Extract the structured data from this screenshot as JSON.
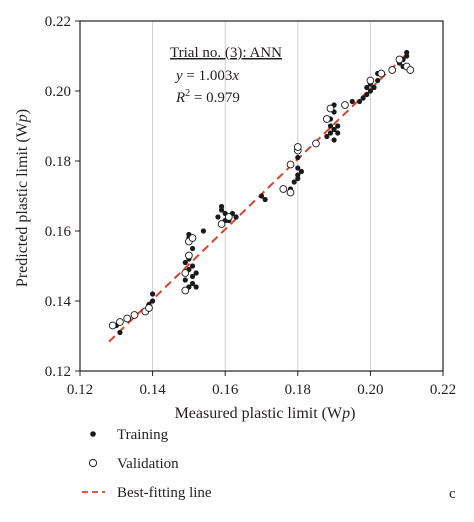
{
  "chart_data": {
    "type": "scatter",
    "xlabel": "Measured plastic limit (W",
    "xlabel_sub": "p",
    "xlabel_end": ")",
    "ylabel": "Predicted plastic limit (W",
    "ylabel_sub": "p",
    "ylabel_end": ")",
    "xlim": [
      0.12,
      0.22
    ],
    "ylim": [
      0.12,
      0.22
    ],
    "xticks": [
      "0.12",
      "0.14",
      "0.16",
      "0.18",
      "0.20",
      "0.22"
    ],
    "yticks": [
      "0.12",
      "0.14",
      "0.16",
      "0.18",
      "0.20",
      "0.22"
    ],
    "grid": "vertical",
    "annotation": {
      "title": "Trial no. (3): ANN",
      "eq_y": "y",
      "eq_rest": " = 1.003",
      "eq_x": "x",
      "r2_r": "R",
      "r2_exp": "2",
      "r2_rest": " = 0.979"
    },
    "panel_label": "c",
    "legend": {
      "training": "Training",
      "validation": "Validation",
      "line": "Best-fitting line"
    },
    "colors": {
      "line": "#d9432b",
      "marker": "#1a1a1a",
      "axis": "#231f20",
      "grid": "#d0d0d0"
    },
    "fit_line": {
      "slope": 1.003,
      "x": [
        0.128,
        0.21
      ]
    },
    "series": [
      {
        "name": "Training",
        "marker": "filled",
        "points": [
          [
            0.13,
            0.133
          ],
          [
            0.131,
            0.131
          ],
          [
            0.139,
            0.139
          ],
          [
            0.14,
            0.14
          ],
          [
            0.14,
            0.142
          ],
          [
            0.149,
            0.146
          ],
          [
            0.149,
            0.151
          ],
          [
            0.15,
            0.144
          ],
          [
            0.15,
            0.149
          ],
          [
            0.15,
            0.152
          ],
          [
            0.15,
            0.158
          ],
          [
            0.15,
            0.159
          ],
          [
            0.151,
            0.145
          ],
          [
            0.151,
            0.147
          ],
          [
            0.151,
            0.15
          ],
          [
            0.151,
            0.155
          ],
          [
            0.152,
            0.148
          ],
          [
            0.152,
            0.144
          ],
          [
            0.154,
            0.16
          ],
          [
            0.158,
            0.164
          ],
          [
            0.159,
            0.166
          ],
          [
            0.159,
            0.167
          ],
          [
            0.16,
            0.163
          ],
          [
            0.16,
            0.165
          ],
          [
            0.161,
            0.163
          ],
          [
            0.162,
            0.165
          ],
          [
            0.163,
            0.164
          ],
          [
            0.17,
            0.17
          ],
          [
            0.171,
            0.169
          ],
          [
            0.178,
            0.172
          ],
          [
            0.179,
            0.174
          ],
          [
            0.18,
            0.175
          ],
          [
            0.18,
            0.176
          ],
          [
            0.18,
            0.178
          ],
          [
            0.181,
            0.177
          ],
          [
            0.18,
            0.181
          ],
          [
            0.188,
            0.187
          ],
          [
            0.189,
            0.188
          ],
          [
            0.189,
            0.19
          ],
          [
            0.189,
            0.192
          ],
          [
            0.19,
            0.186
          ],
          [
            0.19,
            0.189
          ],
          [
            0.19,
            0.194
          ],
          [
            0.19,
            0.196
          ],
          [
            0.191,
            0.19
          ],
          [
            0.191,
            0.188
          ],
          [
            0.195,
            0.197
          ],
          [
            0.197,
            0.197
          ],
          [
            0.198,
            0.198
          ],
          [
            0.199,
            0.199
          ],
          [
            0.199,
            0.201
          ],
          [
            0.2,
            0.2
          ],
          [
            0.2,
            0.202
          ],
          [
            0.201,
            0.201
          ],
          [
            0.202,
            0.203
          ],
          [
            0.202,
            0.205
          ],
          [
            0.208,
            0.208
          ],
          [
            0.209,
            0.207
          ],
          [
            0.209,
            0.209
          ],
          [
            0.21,
            0.21
          ],
          [
            0.21,
            0.211
          ],
          [
            0.21,
            0.207
          ]
        ]
      },
      {
        "name": "Validation",
        "marker": "open",
        "points": [
          [
            0.129,
            0.133
          ],
          [
            0.131,
            0.134
          ],
          [
            0.133,
            0.135
          ],
          [
            0.135,
            0.136
          ],
          [
            0.138,
            0.137
          ],
          [
            0.139,
            0.138
          ],
          [
            0.149,
            0.143
          ],
          [
            0.149,
            0.148
          ],
          [
            0.15,
            0.153
          ],
          [
            0.15,
            0.157
          ],
          [
            0.151,
            0.158
          ],
          [
            0.159,
            0.162
          ],
          [
            0.161,
            0.164
          ],
          [
            0.176,
            0.172
          ],
          [
            0.178,
            0.171
          ],
          [
            0.178,
            0.179
          ],
          [
            0.18,
            0.183
          ],
          [
            0.18,
            0.184
          ],
          [
            0.185,
            0.185
          ],
          [
            0.188,
            0.192
          ],
          [
            0.189,
            0.195
          ],
          [
            0.193,
            0.196
          ],
          [
            0.2,
            0.203
          ],
          [
            0.203,
            0.205
          ],
          [
            0.206,
            0.206
          ],
          [
            0.208,
            0.209
          ],
          [
            0.21,
            0.207
          ],
          [
            0.211,
            0.206
          ]
        ]
      }
    ]
  }
}
